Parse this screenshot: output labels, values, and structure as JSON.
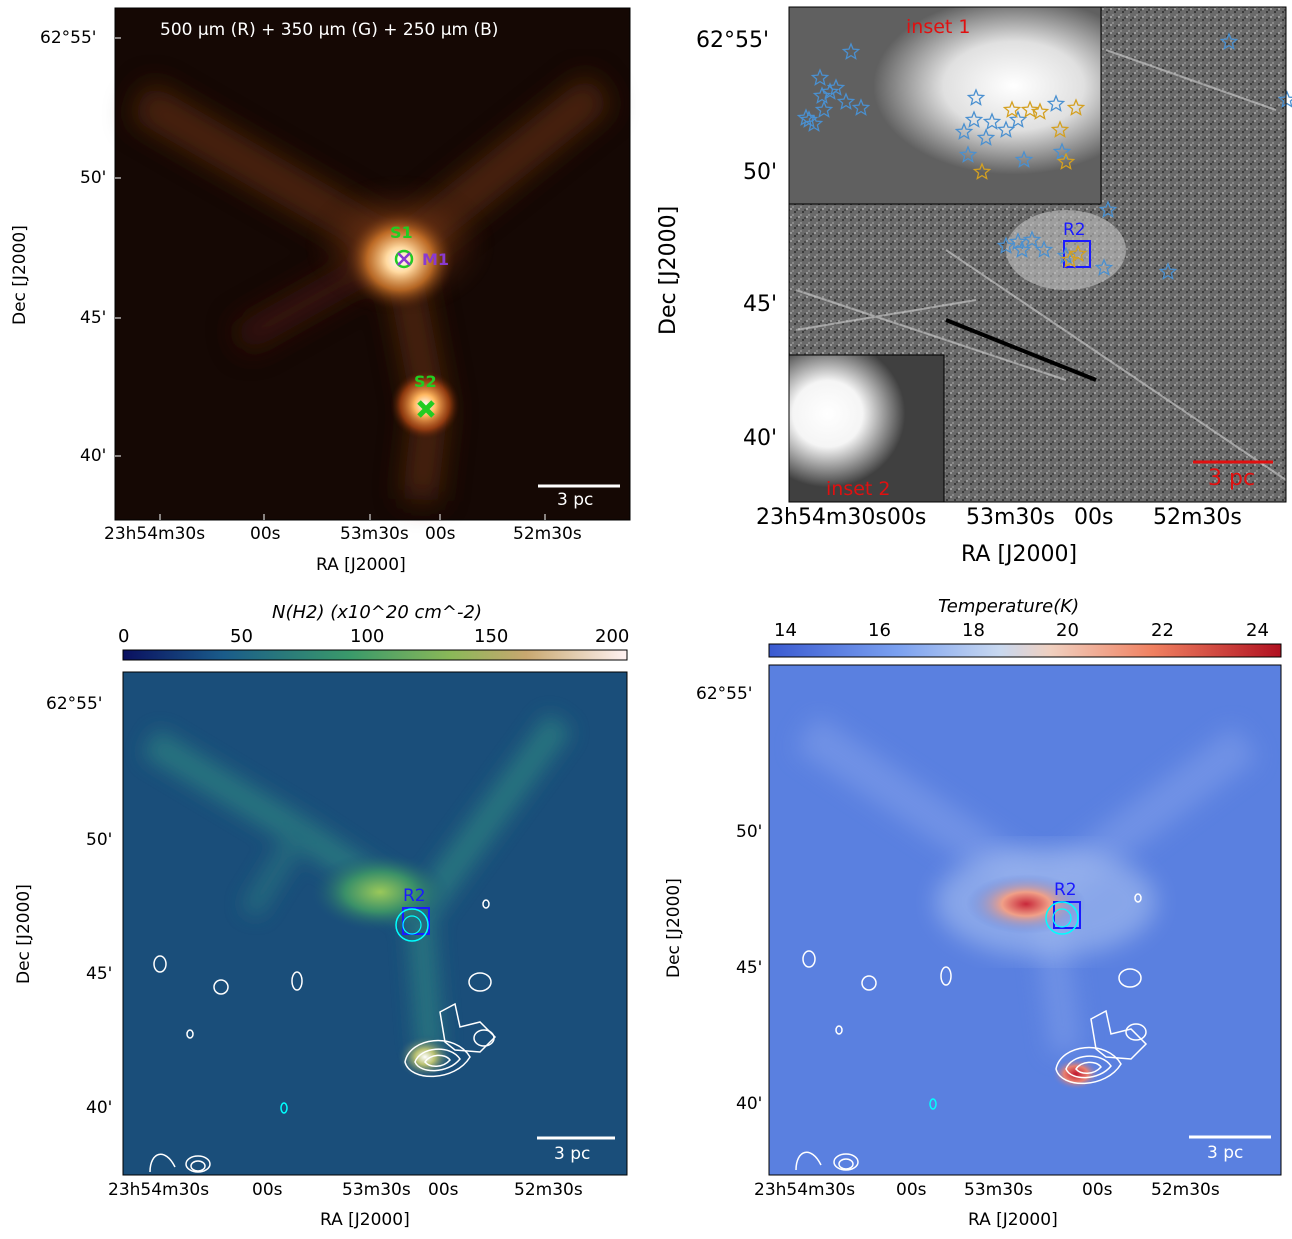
{
  "panels": {
    "a": {
      "title": "500 μm (R) + 350 μm (G) + 250 μm (B)",
      "source_labels": [
        "S1",
        "M1",
        "S2"
      ],
      "scalebar": "3 pc",
      "xlabel": "RA [J2000]",
      "ylabel": "Dec [J2000]",
      "xticks": [
        "23h54m30s",
        "00s",
        "53m30s",
        "00s",
        "52m30s"
      ],
      "yticks": [
        "62°55'",
        "50'",
        "45'",
        "40'"
      ]
    },
    "b": {
      "inset1_label": "inset 1",
      "inset2_label": "inset 2",
      "box_label": "R2",
      "scalebar": "3 pc",
      "xlabel": "RA [J2000]",
      "ylabel": "Dec [J2000]",
      "xticks": [
        "23h54m30s00s",
        "53m30s",
        "00s",
        "52m30s"
      ],
      "yticks": [
        "62°55'",
        "50'",
        "45'",
        "40'"
      ]
    },
    "c": {
      "colorbar_label": "N(H2) (x10^20 cm^-2)",
      "colorbar_ticks": [
        "0",
        "50",
        "100",
        "150",
        "200"
      ],
      "box_label": "R2",
      "scalebar": "3 pc",
      "xlabel": "RA [J2000]",
      "ylabel": "Dec [J2000]",
      "xticks": [
        "23h54m30s",
        "00s",
        "53m30s",
        "00s",
        "52m30s"
      ],
      "yticks": [
        "62°55'",
        "50'",
        "45'",
        "40'"
      ]
    },
    "d": {
      "colorbar_label": "Temperature(K)",
      "colorbar_ticks": [
        "14",
        "16",
        "18",
        "20",
        "22",
        "24"
      ],
      "box_label": "R2",
      "scalebar": "3 pc",
      "xlabel": "RA [J2000]",
      "ylabel": "Dec [J2000]",
      "xticks": [
        "23h54m30s",
        "00s",
        "53m30s",
        "00s",
        "52m30s"
      ],
      "yticks": [
        "62°55'",
        "50'",
        "45'",
        "40'"
      ]
    }
  },
  "colors": {
    "green_label": "#22cc22",
    "purple_label": "#8a3ad0",
    "red_label": "#e01010",
    "blue_box": "#1a1aff",
    "star_blue": "#4a90d0",
    "star_gold": "#d4a020",
    "contour": "#ffffff",
    "cyan": "#00ffff"
  }
}
